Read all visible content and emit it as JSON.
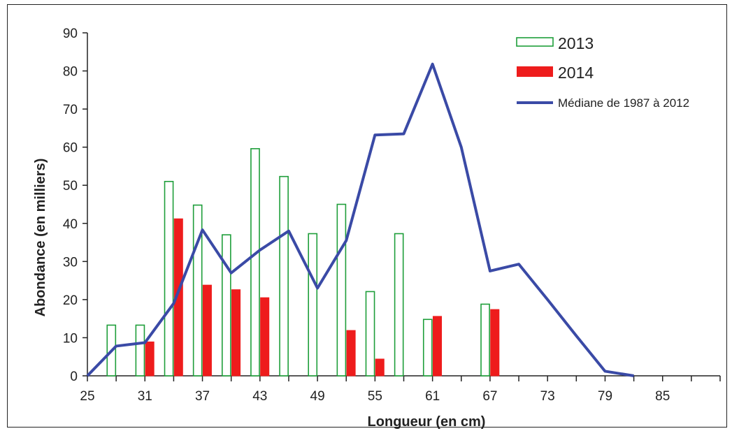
{
  "chart_data": {
    "type": "bar",
    "xlabel": "Longueur (en cm)",
    "ylabel": "Abondance (en milliers)",
    "ylim": [
      0,
      90
    ],
    "xlim": [
      25,
      91
    ],
    "x_ticks": [
      "25",
      "31",
      "37",
      "43",
      "49",
      "55",
      "61",
      "67",
      "73",
      "79",
      "85"
    ],
    "y_ticks": [
      "0",
      "10",
      "20",
      "30",
      "40",
      "50",
      "60",
      "70",
      "80",
      "90"
    ],
    "grid": false,
    "legend_position": "top-right",
    "colors": {
      "2013": "#1e9e3a",
      "2014": "#ee1c1c",
      "median": "#3a4aa6"
    },
    "series": [
      {
        "name": "2013",
        "kind": "bar",
        "x": [
          27.5,
          30.5,
          33.5,
          36.5,
          39.5,
          42.5,
          45.5,
          48.5,
          51.5,
          54.5,
          57.5,
          60.5,
          66.5
        ],
        "values": [
          13.3,
          13.3,
          51,
          44.8,
          37,
          59.6,
          52.3,
          37.3,
          45,
          22.1,
          37.3,
          14.8,
          18.8
        ]
      },
      {
        "name": "2014",
        "kind": "bar",
        "x": [
          31.5,
          34.5,
          37.5,
          40.5,
          43.5,
          52.5,
          55.5,
          61.5,
          67.5
        ],
        "values": [
          8.9,
          41.2,
          23.8,
          22.6,
          20.5,
          11.9,
          4.4,
          15.6,
          17.4
        ]
      },
      {
        "name": "Médiane de 1987 à 2012",
        "kind": "line",
        "x": [
          25,
          28,
          31,
          34,
          37,
          40,
          43,
          46,
          49,
          52,
          55,
          58,
          61,
          64,
          67,
          70,
          73,
          76,
          79,
          82
        ],
        "values": [
          0,
          7.8,
          8.7,
          19,
          38.3,
          27,
          33,
          38,
          23,
          35.5,
          63.2,
          63.5,
          81.8,
          60,
          27.5,
          29.3,
          20,
          10.5,
          1.2,
          0
        ]
      }
    ]
  }
}
